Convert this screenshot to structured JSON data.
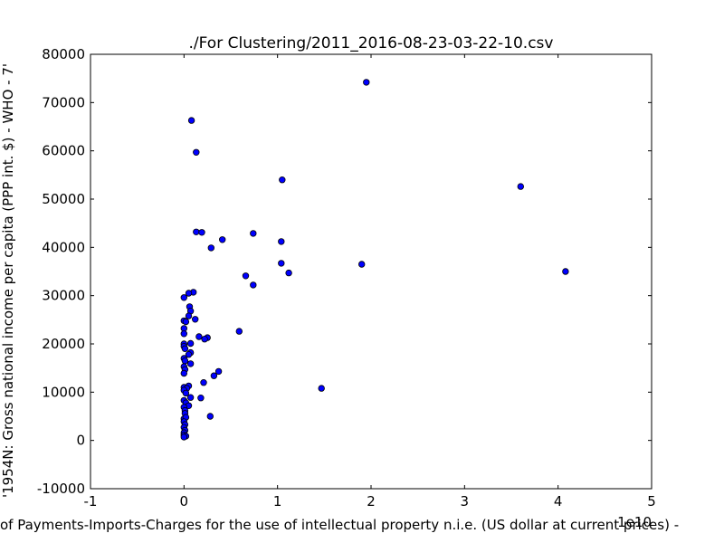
{
  "chart_data": {
    "type": "scatter",
    "title": "./For Clustering/2011_2016-08-23-03-22-10.csv",
    "xlabel": "of Payments-Imports-Charges for the use of intellectual property n.i.e. (US dollar at current prices) -",
    "ylabel": "'1954N: Gross national income per capita (PPP int. $) - WHO - 7'",
    "x_offset_label": "1e10",
    "xlim": [
      -1,
      5
    ],
    "ylim": [
      -10000,
      80000
    ],
    "x_ticks": [
      "-1",
      "0",
      "1",
      "2",
      "3",
      "4",
      "5"
    ],
    "y_ticks": [
      "-10000",
      "0",
      "10000",
      "20000",
      "30000",
      "40000",
      "50000",
      "60000",
      "70000",
      "80000"
    ],
    "grid": false,
    "marker_color": "#0000ff",
    "series": [
      {
        "x": [
          0.08,
          0.13,
          1.95,
          1.05,
          3.6,
          0.13,
          0.19,
          0.74,
          0.41,
          1.04,
          0.29,
          1.9,
          1.04,
          1.12,
          4.08,
          0.66,
          0.74,
          0.1,
          0.05,
          0.0,
          0.06,
          0.07,
          0.12,
          0.0,
          0.02,
          0.05,
          0.0,
          0.59,
          0.0,
          0.16,
          0.25,
          0.22,
          0.07,
          0.0,
          0.0,
          0.01,
          0.07,
          0.05,
          0.0,
          0.01,
          0.07,
          0.0,
          0.37,
          0.01,
          0.32,
          0.0,
          0.21,
          0.05,
          0.0,
          0.03,
          1.47,
          0.0,
          0.02,
          0.07,
          0.18,
          0.0,
          0.02,
          0.05,
          0.0,
          0.01,
          0.01,
          0.28,
          0.0,
          0.02,
          0.0,
          0.01,
          0.0,
          0.01,
          0.0,
          0.0,
          0.02,
          0.0
        ],
        "y": [
          66300,
          59700,
          74200,
          54000,
          52600,
          43200,
          43100,
          42900,
          41600,
          41200,
          39900,
          36500,
          36700,
          34700,
          35000,
          34100,
          32200,
          30700,
          30500,
          29600,
          27700,
          26800,
          25100,
          24800,
          24600,
          25800,
          23200,
          22600,
          22100,
          21500,
          21300,
          21000,
          20100,
          20000,
          19500,
          19000,
          18200,
          17800,
          17000,
          16500,
          15900,
          15300,
          14300,
          14700,
          13400,
          13900,
          12000,
          11300,
          11000,
          10800,
          10800,
          10400,
          9800,
          8900,
          8800,
          8300,
          7800,
          7200,
          6900,
          6200,
          5600,
          5000,
          4500,
          4800,
          3900,
          3300,
          2700,
          2100,
          1600,
          1100,
          900,
          700
        ]
      }
    ]
  }
}
